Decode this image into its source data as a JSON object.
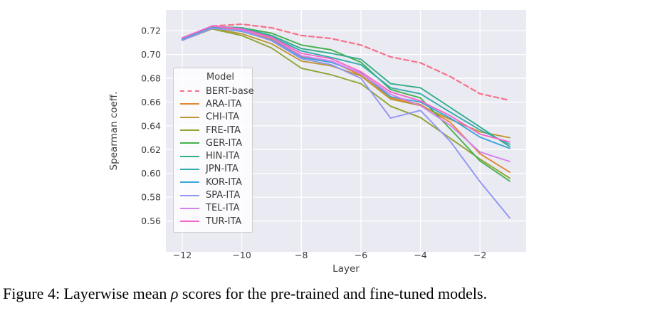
{
  "figure": {
    "caption": {
      "prefix": "Figure 4: Layerwise mean ",
      "symbol": "ρ",
      "suffix": " scores for the pre-trained and fine-tuned models."
    }
  },
  "legend": {
    "title": "Model"
  },
  "colors": {
    "figure_background": "#ffffff",
    "plot_background": "#eaeaf2",
    "gridline": "#ffffff",
    "tick_text": "#3b3b3b",
    "legend_background": "rgba(255,255,255,0.8)",
    "legend_border": "#cccccc"
  },
  "chart_data": {
    "type": "line",
    "title": "",
    "xlabel": "Layer",
    "ylabel": "Spearman coeff.",
    "grid": true,
    "legend_title": "Model",
    "legend_position": "center left",
    "x": [
      -12,
      -11,
      -10,
      -9,
      -8,
      -7,
      -6,
      -5,
      -4,
      -3,
      -2,
      -1
    ],
    "xlim": [
      -12.55,
      -0.45
    ],
    "ylim": [
      0.534,
      0.7375
    ],
    "xticks": [
      -12,
      -10,
      -8,
      -6,
      -4,
      -2
    ],
    "xtick_labels": [
      "−12",
      "−10",
      "−8",
      "−6",
      "−4",
      "−2"
    ],
    "yticks": [
      0.56,
      0.58,
      0.6,
      0.62,
      0.64,
      0.66,
      0.68,
      0.7,
      0.72
    ],
    "ytick_labels": [
      "0.56",
      "0.58",
      "0.60",
      "0.62",
      "0.64",
      "0.66",
      "0.68",
      "0.70",
      "0.72"
    ],
    "series": [
      {
        "name": "BERT-base",
        "color": "#f77189",
        "dash": true,
        "values": [
          0.7125,
          0.724,
          0.7255,
          0.7225,
          0.716,
          0.7135,
          0.708,
          0.698,
          0.693,
          0.6815,
          0.667,
          0.6615
        ]
      },
      {
        "name": "ARA-ITA",
        "color": "#e58633",
        "dash": false,
        "values": [
          0.7125,
          0.723,
          0.72,
          0.713,
          0.6985,
          0.6945,
          0.6825,
          0.6635,
          0.658,
          0.643,
          0.6165,
          0.601
        ]
      },
      {
        "name": "CHI-ITA",
        "color": "#bb9832",
        "dash": false,
        "values": [
          0.712,
          0.722,
          0.7175,
          0.709,
          0.6945,
          0.6905,
          0.682,
          0.6625,
          0.657,
          0.6455,
          0.635,
          0.63
        ]
      },
      {
        "name": "FRE-ITA",
        "color": "#8ea633",
        "dash": false,
        "values": [
          0.712,
          0.7215,
          0.716,
          0.7055,
          0.6885,
          0.683,
          0.6755,
          0.6565,
          0.647,
          0.6295,
          0.612,
          0.596
        ]
      },
      {
        "name": "GER-ITA",
        "color": "#45b14e",
        "dash": false,
        "values": [
          0.713,
          0.7235,
          0.7225,
          0.718,
          0.708,
          0.704,
          0.6935,
          0.6705,
          0.6635,
          0.6375,
          0.6105,
          0.5935
        ]
      },
      {
        "name": "HIN-ITA",
        "color": "#34ad8b",
        "dash": false,
        "values": [
          0.713,
          0.7235,
          0.7225,
          0.716,
          0.705,
          0.701,
          0.696,
          0.6755,
          0.672,
          0.6555,
          0.639,
          0.6225
        ]
      },
      {
        "name": "JPN-ITA",
        "color": "#36acae",
        "dash": false,
        "values": [
          0.713,
          0.723,
          0.722,
          0.715,
          0.703,
          0.6975,
          0.6915,
          0.672,
          0.667,
          0.6515,
          0.6365,
          0.6245
        ]
      },
      {
        "name": "KOR-ITA",
        "color": "#3da5dc",
        "dash": false,
        "values": [
          0.7125,
          0.7225,
          0.7195,
          0.712,
          0.6975,
          0.6935,
          0.6845,
          0.6645,
          0.66,
          0.6465,
          0.6305,
          0.621
        ]
      },
      {
        "name": "SPA-ITA",
        "color": "#9195f4",
        "dash": false,
        "values": [
          0.712,
          0.722,
          0.72,
          0.7115,
          0.6965,
          0.6915,
          0.68,
          0.6465,
          0.653,
          0.627,
          0.593,
          0.5625
        ]
      },
      {
        "name": "TEL-ITA",
        "color": "#d57ff0",
        "dash": false,
        "values": [
          0.714,
          0.724,
          0.721,
          0.714,
          0.699,
          0.6945,
          0.684,
          0.6665,
          0.657,
          0.6405,
          0.618,
          0.61
        ]
      },
      {
        "name": "TUR-ITA",
        "color": "#f565c8",
        "dash": false,
        "values": [
          0.714,
          0.724,
          0.7215,
          0.7145,
          0.701,
          0.6965,
          0.6855,
          0.6685,
          0.661,
          0.6485,
          0.633,
          0.6265
        ]
      }
    ]
  }
}
